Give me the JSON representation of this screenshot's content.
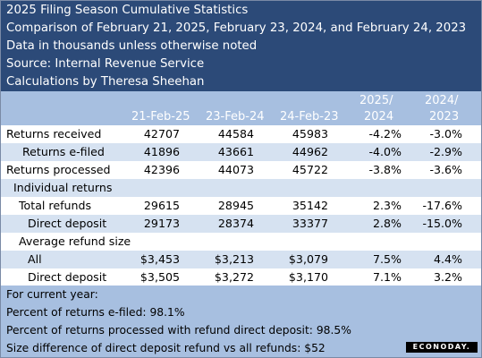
{
  "header": {
    "title": "2025 Filing Season Cumulative Statistics",
    "subtitle": "Comparison of February 21, 2025, February 23, 2024, and February 24, 2023",
    "units": "Data in thousands unless otherwise noted",
    "source": "Source: Internal Revenue Service",
    "credit": "Calculations by Theresa Sheehan"
  },
  "columns": {
    "c1": "21-Feb-25",
    "c2": "23-Feb-24",
    "c3": "24-Feb-23",
    "c4_top": "2025/",
    "c4_bottom": "2024",
    "c5_top": "2024/",
    "c5_bottom": "2023"
  },
  "rows": [
    {
      "label": "Returns received",
      "v1": "42707",
      "v2": "44584",
      "v3": "45983",
      "v4": "-4.2%",
      "v5": "-3.0%"
    },
    {
      "label": "Returns e-filed",
      "v1": "41896",
      "v2": "43661",
      "v3": "44962",
      "v4": "-4.0%",
      "v5": "-2.9%"
    },
    {
      "label": "Returns processed",
      "v1": "42396",
      "v2": "44073",
      "v3": "45722",
      "v4": "-3.8%",
      "v5": "-3.6%"
    },
    {
      "label": "Individual returns",
      "v1": "",
      "v2": "",
      "v3": "",
      "v4": "",
      "v5": ""
    },
    {
      "label": "Total refunds",
      "v1": "29615",
      "v2": "28945",
      "v3": "35142",
      "v4": "2.3%",
      "v5": "-17.6%"
    },
    {
      "label": "Direct deposit",
      "v1": "29173",
      "v2": "28374",
      "v3": "33377",
      "v4": "2.8%",
      "v5": "-15.0%"
    },
    {
      "label": "Average refund size",
      "v1": "",
      "v2": "",
      "v3": "",
      "v4": "",
      "v5": ""
    },
    {
      "label": "All",
      "v1": "$3,453",
      "v2": "$3,213",
      "v3": "$3,079",
      "v4": "7.5%",
      "v5": "4.4%"
    },
    {
      "label": "Direct deposit",
      "v1": "$3,505",
      "v2": "$3,272",
      "v3": "$3,170",
      "v4": "7.1%",
      "v5": "3.2%"
    }
  ],
  "footer": {
    "heading": "For current year:",
    "line1": "Percent of returns e-filed: 98.1%",
    "line2": "Percent of returns processed with refund direct deposit: 98.5%",
    "line3": "Size difference of direct deposit refund vs all refunds: $52"
  },
  "logo_text": "ECONODAY."
}
